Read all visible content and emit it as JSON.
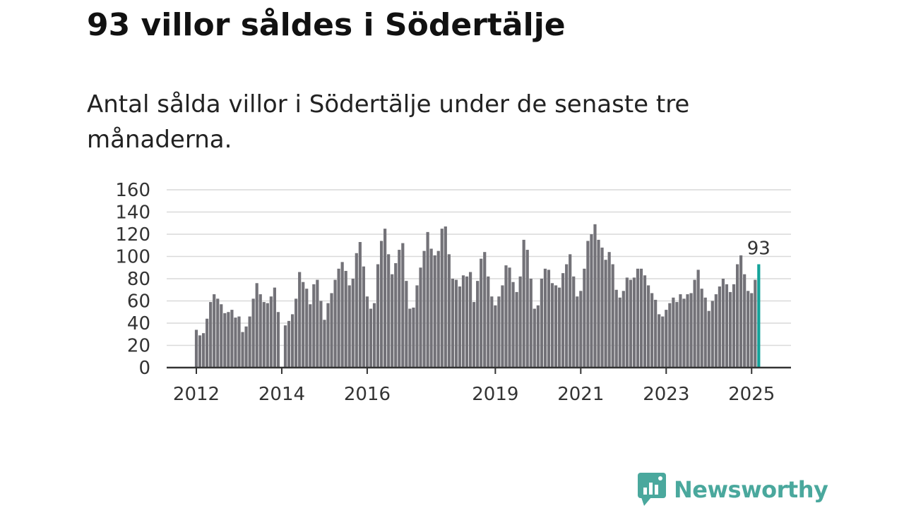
{
  "title": "93 villor såldes i Södertälje",
  "subtitle": "Antal sålda villor i Södertälje under de senaste tre månaderna.",
  "brand": {
    "name": "Newsworthy",
    "color": "#4aa89d",
    "icon": "newsworthy-logo-icon"
  },
  "colors": {
    "bar": "#737278",
    "highlight": "#14a39a",
    "grid": "#d9d9d9",
    "axis": "#333333"
  },
  "chart_data": {
    "type": "bar",
    "ylim": [
      0,
      160
    ],
    "yticks": [
      0,
      20,
      40,
      60,
      80,
      100,
      120,
      140,
      160
    ],
    "xticks": [
      {
        "label": "2012",
        "index": 0
      },
      {
        "label": "2014",
        "index": 24
      },
      {
        "label": "2016",
        "index": 48
      },
      {
        "label": "2019",
        "index": 84
      },
      {
        "label": "2021",
        "index": 108
      },
      {
        "label": "2023",
        "index": 132
      },
      {
        "label": "2025",
        "index": 156
      }
    ],
    "grid": true,
    "last_label": "93",
    "values": [
      34,
      29,
      31,
      44,
      59,
      66,
      62,
      57,
      49,
      50,
      52,
      45,
      46,
      32,
      37,
      46,
      62,
      76,
      66,
      59,
      58,
      64,
      72,
      50,
      0,
      38,
      42,
      48,
      62,
      86,
      77,
      71,
      57,
      75,
      79,
      60,
      43,
      58,
      67,
      79,
      89,
      95,
      87,
      74,
      80,
      103,
      113,
      91,
      64,
      53,
      58,
      93,
      114,
      125,
      102,
      84,
      94,
      106,
      112,
      78,
      53,
      54,
      74,
      90,
      105,
      122,
      107,
      101,
      105,
      125,
      127,
      102,
      80,
      79,
      73,
      83,
      82,
      86,
      59,
      78,
      98,
      104,
      82,
      64,
      56,
      64,
      74,
      92,
      90,
      77,
      68,
      82,
      115,
      106,
      80,
      53,
      56,
      80,
      89,
      88,
      76,
      74,
      72,
      85,
      93,
      102,
      82,
      64,
      69,
      89,
      114,
      120,
      129,
      115,
      108,
      97,
      104,
      93,
      70,
      63,
      69,
      81,
      79,
      81,
      89,
      89,
      83,
      74,
      67,
      61,
      48,
      46,
      52,
      58,
      63,
      59,
      66,
      62,
      66,
      67,
      79,
      88,
      71,
      63,
      51,
      60,
      66,
      73,
      80,
      75,
      68,
      75,
      93,
      101,
      84,
      69,
      67,
      79,
      93
    ]
  }
}
